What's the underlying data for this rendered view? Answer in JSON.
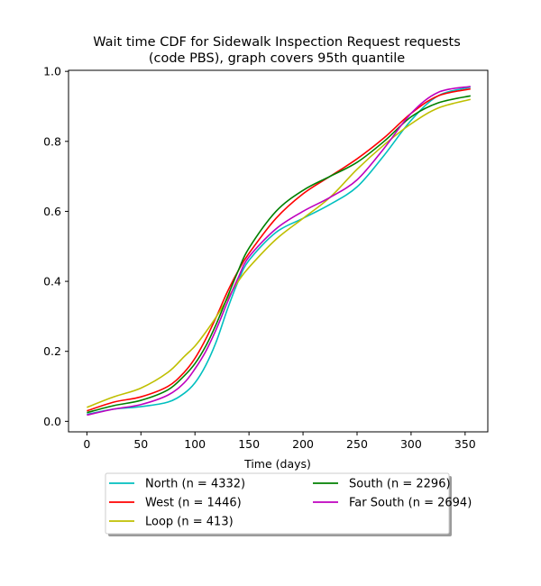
{
  "chart_data": {
    "type": "line",
    "title_lines": [
      "Wait time CDF for Sidewalk Inspection Request  requests",
      "(code PBS), graph covers 95th quantile"
    ],
    "xlabel": "Time (days)",
    "ylabel": "",
    "xlim": [
      -17,
      371
    ],
    "ylim": [
      -0.03,
      1.003
    ],
    "x_ticks": [
      0,
      50,
      100,
      150,
      200,
      250,
      300,
      350
    ],
    "y_ticks": [
      0.0,
      0.2,
      0.4,
      0.6,
      0.8,
      1.0
    ],
    "y_tick_labels": [
      "0.0",
      "0.2",
      "0.4",
      "0.6",
      "0.8",
      "1.0"
    ],
    "grid": false,
    "legend_position": "below plot, two columns",
    "x": [
      0,
      25,
      50,
      75,
      90,
      100,
      110,
      120,
      130,
      140,
      150,
      175,
      200,
      225,
      250,
      275,
      300,
      325,
      355
    ],
    "series": [
      {
        "name": "North (n = 4332)",
        "color": "#00bfbf",
        "values": [
          0.02,
          0.035,
          0.042,
          0.055,
          0.08,
          0.11,
          0.16,
          0.23,
          0.32,
          0.4,
          0.46,
          0.54,
          0.58,
          0.62,
          0.67,
          0.76,
          0.86,
          0.93,
          0.955
        ]
      },
      {
        "name": "West (n = 1446)",
        "color": "#ff0000",
        "values": [
          0.03,
          0.055,
          0.07,
          0.1,
          0.14,
          0.18,
          0.235,
          0.3,
          0.37,
          0.43,
          0.48,
          0.58,
          0.65,
          0.7,
          0.75,
          0.81,
          0.88,
          0.93,
          0.95
        ]
      },
      {
        "name": "Loop (n = 413)",
        "color": "#bfbf00",
        "values": [
          0.04,
          0.07,
          0.095,
          0.14,
          0.185,
          0.215,
          0.255,
          0.3,
          0.35,
          0.4,
          0.44,
          0.52,
          0.58,
          0.64,
          0.72,
          0.79,
          0.85,
          0.895,
          0.92
        ]
      },
      {
        "name": "South (n = 2296)",
        "color": "#008000",
        "values": [
          0.025,
          0.045,
          0.06,
          0.09,
          0.13,
          0.165,
          0.215,
          0.28,
          0.355,
          0.43,
          0.495,
          0.6,
          0.66,
          0.7,
          0.74,
          0.8,
          0.87,
          0.91,
          0.93
        ]
      },
      {
        "name": "Far South (n = 2694)",
        "color": "#bf00bf",
        "values": [
          0.018,
          0.035,
          0.048,
          0.075,
          0.11,
          0.15,
          0.2,
          0.265,
          0.34,
          0.41,
          0.47,
          0.55,
          0.6,
          0.64,
          0.69,
          0.78,
          0.88,
          0.94,
          0.957
        ]
      }
    ]
  }
}
